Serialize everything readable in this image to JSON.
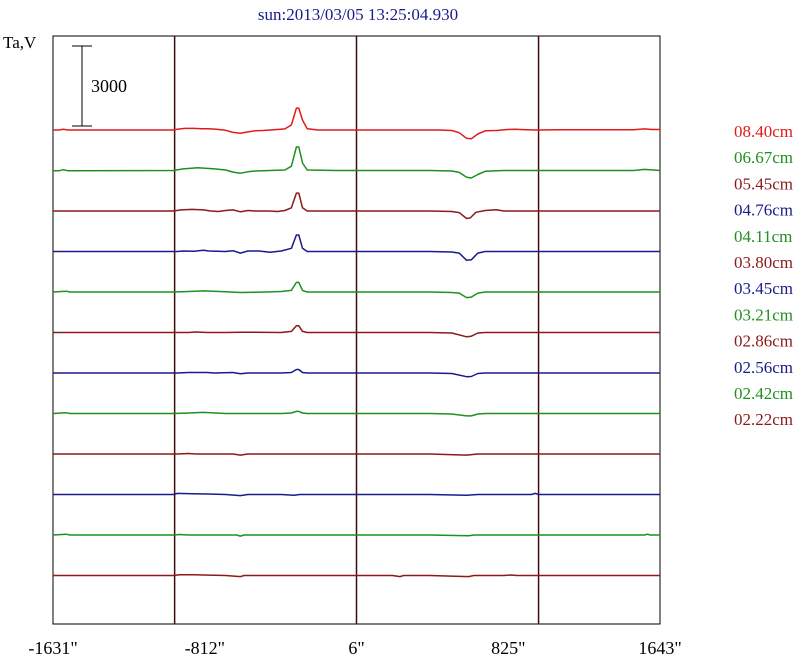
{
  "chart_data": {
    "type": "line",
    "title": "sun:2013/03/05 13:25:04.930",
    "ylabel": "Ta,V",
    "scale_bar_label": "3000",
    "scale_bar_value": 3000,
    "xlim": [
      -1631,
      1643
    ],
    "x_ticks": [
      {
        "value": -1631,
        "label": "-1631\""
      },
      {
        "value": -812,
        "label": "-812\""
      },
      {
        "value": 6,
        "label": "6\""
      },
      {
        "value": 825,
        "label": "825\""
      },
      {
        "value": 1643,
        "label": "1643\""
      }
    ],
    "vertical_lines": [
      -975,
      6,
      988
    ],
    "offset_step": 0.6,
    "series": [
      {
        "name": "08.40cm",
        "color": "#e31a1c",
        "pattern": [
          [
            -1631,
            1.43
          ],
          [
            -1600,
            1.43
          ],
          [
            -1575,
            1.46
          ],
          [
            -1550,
            1.43
          ],
          [
            -980,
            1.43
          ],
          [
            -960,
            1.46
          ],
          [
            -920,
            1.49
          ],
          [
            -870,
            1.49
          ],
          [
            -830,
            1.48
          ],
          [
            -790,
            1.48
          ],
          [
            -750,
            1.46
          ],
          [
            -700,
            1.42
          ],
          [
            -660,
            1.34
          ],
          [
            -620,
            1.31
          ],
          [
            -580,
            1.36
          ],
          [
            -540,
            1.4
          ],
          [
            -500,
            1.41
          ],
          [
            -460,
            1.43
          ],
          [
            -420,
            1.45
          ],
          [
            -380,
            1.47
          ],
          [
            -345,
            1.62
          ],
          [
            -318,
            2.25
          ],
          [
            -305,
            2.25
          ],
          [
            -285,
            1.8
          ],
          [
            -260,
            1.48
          ],
          [
            -200,
            1.43
          ],
          [
            -100,
            1.43
          ],
          [
            0,
            1.43
          ],
          [
            100,
            1.43
          ],
          [
            250,
            1.43
          ],
          [
            350,
            1.43
          ],
          [
            450,
            1.43
          ],
          [
            520,
            1.41
          ],
          [
            560,
            1.33
          ],
          [
            600,
            1.12
          ],
          [
            625,
            1.1
          ],
          [
            660,
            1.28
          ],
          [
            700,
            1.4
          ],
          [
            760,
            1.41
          ],
          [
            820,
            1.45
          ],
          [
            860,
            1.46
          ],
          [
            920,
            1.44
          ],
          [
            980,
            1.43
          ],
          [
            1100,
            1.44
          ],
          [
            1300,
            1.44
          ],
          [
            1500,
            1.44
          ],
          [
            1560,
            1.47
          ],
          [
            1600,
            1.45
          ],
          [
            1643,
            1.45
          ]
        ]
      },
      {
        "name": "06.67cm",
        "color": "#1f8f1f",
        "pattern": [
          [
            -1631,
            0.59
          ],
          [
            -1600,
            0.59
          ],
          [
            -1575,
            0.63
          ],
          [
            -1550,
            0.59
          ],
          [
            -980,
            0.6
          ],
          [
            -930,
            0.66
          ],
          [
            -850,
            0.7
          ],
          [
            -800,
            0.68
          ],
          [
            -760,
            0.66
          ],
          [
            -700,
            0.62
          ],
          [
            -660,
            0.54
          ],
          [
            -620,
            0.5
          ],
          [
            -580,
            0.55
          ],
          [
            -540,
            0.58
          ],
          [
            -460,
            0.6
          ],
          [
            -380,
            0.62
          ],
          [
            -345,
            0.76
          ],
          [
            -318,
            1.48
          ],
          [
            -305,
            1.48
          ],
          [
            -285,
            0.88
          ],
          [
            -260,
            0.62
          ],
          [
            -100,
            0.6
          ],
          [
            100,
            0.6
          ],
          [
            400,
            0.6
          ],
          [
            520,
            0.58
          ],
          [
            560,
            0.53
          ],
          [
            600,
            0.35
          ],
          [
            625,
            0.32
          ],
          [
            660,
            0.45
          ],
          [
            700,
            0.57
          ],
          [
            800,
            0.6
          ],
          [
            900,
            0.6
          ],
          [
            1100,
            0.6
          ],
          [
            1300,
            0.6
          ],
          [
            1500,
            0.6
          ],
          [
            1560,
            0.64
          ],
          [
            1643,
            0.6
          ]
        ]
      },
      {
        "name": "05.45cm",
        "color": "#8b1a1a",
        "pattern": [
          [
            -1631,
            0.0
          ],
          [
            -980,
            0.0
          ],
          [
            -940,
            0.04
          ],
          [
            -880,
            0.06
          ],
          [
            -820,
            0.04
          ],
          [
            -780,
            0.0
          ],
          [
            -740,
            -0.02
          ],
          [
            -700,
            0.02
          ],
          [
            -660,
            0.04
          ],
          [
            -620,
            -0.03
          ],
          [
            -580,
            0.02
          ],
          [
            -540,
            0.0
          ],
          [
            -470,
            0.0
          ],
          [
            -420,
            -0.02
          ],
          [
            -380,
            0.02
          ],
          [
            -345,
            0.12
          ],
          [
            -318,
            0.67
          ],
          [
            -305,
            0.67
          ],
          [
            -285,
            0.12
          ],
          [
            -260,
            0.0
          ],
          [
            -100,
            0.0
          ],
          [
            100,
            0.0
          ],
          [
            400,
            0.0
          ],
          [
            520,
            -0.02
          ],
          [
            560,
            -0.06
          ],
          [
            600,
            -0.28
          ],
          [
            620,
            -0.26
          ],
          [
            650,
            -0.05
          ],
          [
            700,
            0.02
          ],
          [
            760,
            0.05
          ],
          [
            800,
            0.0
          ],
          [
            900,
            0.0
          ],
          [
            1643,
            0.0
          ]
        ]
      },
      {
        "name": "04.76cm",
        "color": "#1a1a8c",
        "pattern": [
          [
            -1631,
            0.0
          ],
          [
            -960,
            0.0
          ],
          [
            -930,
            0.02
          ],
          [
            -870,
            0.01
          ],
          [
            -820,
            0.05
          ],
          [
            -790,
            0.02
          ],
          [
            -700,
            0.0
          ],
          [
            -660,
            0.03
          ],
          [
            -620,
            -0.06
          ],
          [
            -580,
            0.02
          ],
          [
            -520,
            0.02
          ],
          [
            -460,
            -0.03
          ],
          [
            -400,
            0.02
          ],
          [
            -345,
            0.12
          ],
          [
            -318,
            0.62
          ],
          [
            -305,
            0.62
          ],
          [
            -285,
            0.12
          ],
          [
            -260,
            0.0
          ],
          [
            -100,
            0.0
          ],
          [
            400,
            0.0
          ],
          [
            520,
            -0.02
          ],
          [
            560,
            -0.06
          ],
          [
            600,
            -0.33
          ],
          [
            625,
            -0.31
          ],
          [
            660,
            -0.06
          ],
          [
            700,
            0.0
          ],
          [
            1643,
            0.0
          ]
        ]
      },
      {
        "name": "04.11cm",
        "color": "#1f8f1f",
        "pattern": [
          [
            -1631,
            0.0
          ],
          [
            -1560,
            0.03
          ],
          [
            -1540,
            0.0
          ],
          [
            -980,
            0.0
          ],
          [
            -900,
            0.02
          ],
          [
            -820,
            0.04
          ],
          [
            -700,
            0.01
          ],
          [
            -620,
            -0.02
          ],
          [
            -480,
            0.0
          ],
          [
            -400,
            0.02
          ],
          [
            -345,
            0.06
          ],
          [
            -318,
            0.36
          ],
          [
            -305,
            0.36
          ],
          [
            -285,
            0.06
          ],
          [
            -260,
            0.0
          ],
          [
            400,
            0.0
          ],
          [
            520,
            -0.02
          ],
          [
            560,
            -0.04
          ],
          [
            600,
            -0.21
          ],
          [
            625,
            -0.19
          ],
          [
            660,
            -0.04
          ],
          [
            700,
            0.0
          ],
          [
            1643,
            0.0
          ]
        ]
      },
      {
        "name": "03.80cm",
        "color": "#8b1a1a",
        "pattern": [
          [
            -1631,
            0.0
          ],
          [
            -900,
            0.0
          ],
          [
            -860,
            0.02
          ],
          [
            -800,
            0.0
          ],
          [
            -700,
            0.0
          ],
          [
            -620,
            0.01
          ],
          [
            -400,
            0.0
          ],
          [
            -345,
            0.04
          ],
          [
            -318,
            0.25
          ],
          [
            -305,
            0.25
          ],
          [
            -285,
            0.04
          ],
          [
            -260,
            0.0
          ],
          [
            400,
            0.0
          ],
          [
            520,
            -0.02
          ],
          [
            600,
            -0.16
          ],
          [
            625,
            -0.14
          ],
          [
            660,
            -0.02
          ],
          [
            700,
            0.0
          ],
          [
            1643,
            0.0
          ]
        ]
      },
      {
        "name": "03.45cm",
        "color": "#1a1a8c",
        "pattern": [
          [
            -1631,
            0.0
          ],
          [
            -960,
            0.0
          ],
          [
            -900,
            0.02
          ],
          [
            -800,
            0.02
          ],
          [
            -760,
            0.0
          ],
          [
            -660,
            0.02
          ],
          [
            -620,
            -0.03
          ],
          [
            -580,
            0.0
          ],
          [
            -400,
            0.0
          ],
          [
            -345,
            0.02
          ],
          [
            -318,
            0.13
          ],
          [
            -305,
            0.13
          ],
          [
            -285,
            0.02
          ],
          [
            -260,
            0.0
          ],
          [
            400,
            0.0
          ],
          [
            520,
            -0.02
          ],
          [
            600,
            -0.14
          ],
          [
            625,
            -0.13
          ],
          [
            660,
            -0.02
          ],
          [
            700,
            0.0
          ],
          [
            1643,
            0.0
          ]
        ]
      },
      {
        "name": "03.21cm",
        "color": "#1f8f1f",
        "pattern": [
          [
            -1631,
            0.0
          ],
          [
            -1560,
            0.03
          ],
          [
            -1540,
            0.0
          ],
          [
            -980,
            0.0
          ],
          [
            -900,
            0.02
          ],
          [
            -820,
            0.04
          ],
          [
            -700,
            0.0
          ],
          [
            -400,
            0.0
          ],
          [
            -345,
            0.02
          ],
          [
            -318,
            0.08
          ],
          [
            -305,
            0.08
          ],
          [
            -285,
            0.02
          ],
          [
            -260,
            0.0
          ],
          [
            400,
            0.0
          ],
          [
            520,
            -0.02
          ],
          [
            600,
            -0.09
          ],
          [
            625,
            -0.09
          ],
          [
            660,
            -0.02
          ],
          [
            700,
            0.0
          ],
          [
            1643,
            0.0
          ]
        ]
      },
      {
        "name": "02.86cm",
        "color": "#8b1a1a",
        "pattern": [
          [
            -1631,
            0.0
          ],
          [
            -960,
            0.0
          ],
          [
            -900,
            0.02
          ],
          [
            -860,
            0.0
          ],
          [
            -660,
            0.0
          ],
          [
            -620,
            -0.04
          ],
          [
            -580,
            0.0
          ],
          [
            -400,
            0.0
          ],
          [
            400,
            0.0
          ],
          [
            600,
            -0.04
          ],
          [
            660,
            0.0
          ],
          [
            1643,
            0.0
          ]
        ]
      },
      {
        "name": "02.56cm",
        "color": "#1a1a8c",
        "pattern": [
          [
            -1631,
            0.0
          ],
          [
            -980,
            0.0
          ],
          [
            -960,
            0.04
          ],
          [
            -880,
            0.03
          ],
          [
            -800,
            0.02
          ],
          [
            -700,
            0.0
          ],
          [
            -620,
            -0.04
          ],
          [
            -580,
            0.0
          ],
          [
            -400,
            0.0
          ],
          [
            -330,
            -0.03
          ],
          [
            -300,
            0.0
          ],
          [
            400,
            0.0
          ],
          [
            600,
            -0.03
          ],
          [
            660,
            0.0
          ],
          [
            950,
            0.0
          ],
          [
            970,
            0.04
          ],
          [
            990,
            0.0
          ],
          [
            1643,
            0.0
          ]
        ]
      },
      {
        "name": "02.42cm",
        "color": "#1f8f1f",
        "pattern": [
          [
            -1631,
            0.0
          ],
          [
            -1560,
            0.03
          ],
          [
            -1540,
            0.0
          ],
          [
            -980,
            0.0
          ],
          [
            -950,
            0.02
          ],
          [
            -900,
            0.0
          ],
          [
            -640,
            0.0
          ],
          [
            -620,
            -0.04
          ],
          [
            -600,
            0.0
          ],
          [
            400,
            0.0
          ],
          [
            610,
            -0.03
          ],
          [
            640,
            0.0
          ],
          [
            1560,
            0.0
          ],
          [
            1575,
            0.03
          ],
          [
            1590,
            0.0
          ],
          [
            1643,
            0.0
          ]
        ]
      },
      {
        "name": "02.22cm",
        "color": "#8b1a1a",
        "pattern": [
          [
            -1631,
            0.0
          ],
          [
            -980,
            0.0
          ],
          [
            -950,
            0.03
          ],
          [
            -870,
            0.03
          ],
          [
            -820,
            0.02
          ],
          [
            -760,
            0.01
          ],
          [
            -700,
            0.0
          ],
          [
            -620,
            -0.04
          ],
          [
            -600,
            0.0
          ],
          [
            200,
            0.0
          ],
          [
            240,
            -0.04
          ],
          [
            260,
            0.0
          ],
          [
            400,
            0.0
          ],
          [
            610,
            -0.04
          ],
          [
            640,
            0.0
          ],
          [
            800,
            0.0
          ],
          [
            840,
            0.02
          ],
          [
            870,
            0.0
          ],
          [
            1643,
            0.0
          ]
        ]
      }
    ]
  }
}
